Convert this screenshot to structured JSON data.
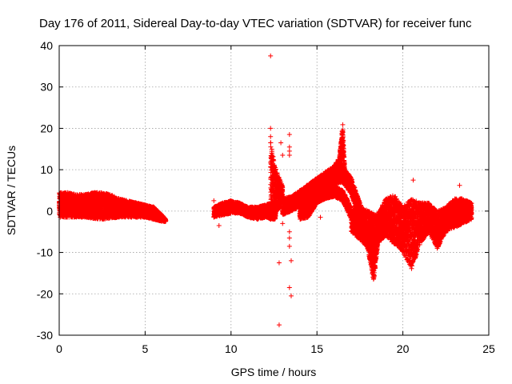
{
  "chart_data": {
    "type": "scatter",
    "title": "Day 176 of 2011, Sidereal Day-to-day VTEC variation (SDTVAR) for receiver func",
    "xlabel": "GPS time / hours",
    "ylabel": "SDTVAR / TECUs",
    "xlim": [
      0,
      25
    ],
    "ylim": [
      -30,
      40
    ],
    "xticks": [
      0,
      5,
      10,
      15,
      20,
      25
    ],
    "yticks": [
      -30,
      -20,
      -10,
      0,
      10,
      20,
      30,
      40
    ],
    "grid": true,
    "marker": "+",
    "color": "#ff0000",
    "series": [
      {
        "name": "SDTVAR",
        "bands": [
          {
            "x": [
              0.0,
              0.5,
              1.0,
              1.5,
              2.0,
              2.5,
              3.0,
              3.5,
              4.0,
              4.5,
              5.0,
              5.5,
              6.0,
              6.2
            ],
            "ymin": [
              -1.5,
              -1.5,
              -1.5,
              -1.5,
              -1.8,
              -2.0,
              -1.8,
              -1.5,
              -1.5,
              -1.5,
              -1.5,
              -2.0,
              -2.5,
              -2.5
            ],
            "ymax": [
              4.5,
              4.5,
              4.0,
              4.0,
              4.5,
              4.5,
              4.0,
              3.0,
              2.5,
              2.0,
              1.5,
              1.0,
              -1.0,
              -2.0
            ]
          },
          {
            "x": [
              9.0,
              9.5,
              10.0,
              10.5,
              11.0,
              11.5,
              12.0,
              12.3,
              12.6
            ],
            "ymin": [
              -1.5,
              -1.0,
              -0.5,
              -0.5,
              -1.5,
              -2.0,
              -1.5,
              -2.0,
              -2.0
            ],
            "ymax": [
              1.0,
              2.0,
              2.5,
              2.0,
              1.0,
              1.0,
              1.5,
              2.0,
              2.0
            ]
          },
          {
            "x": [
              12.3,
              12.5,
              12.7,
              12.9,
              13.0
            ],
            "ymin": [
              -2.0,
              -1.0,
              0.0,
              1.0,
              2.0
            ],
            "ymax": [
              17.0,
              12.0,
              9.0,
              7.0,
              6.0
            ]
          },
          {
            "x": [
              13.0,
              13.5,
              14.0,
              14.5,
              15.0,
              15.5,
              16.0,
              16.3
            ],
            "ymin": [
              -1.0,
              0.0,
              1.0,
              2.0,
              3.0,
              4.0,
              6.0,
              8.0
            ],
            "ymax": [
              3.0,
              3.5,
              4.5,
              6.0,
              8.0,
              9.5,
              11.0,
              13.0
            ]
          },
          {
            "x": [
              16.3,
              16.4,
              16.5,
              16.6
            ],
            "ymin": [
              8.0,
              11.0,
              14.0,
              10.0
            ],
            "ymax": [
              13.0,
              17.0,
              21.0,
              12.0
            ]
          },
          {
            "x": [
              13.5,
              14.0,
              14.5,
              15.0,
              15.5,
              16.0,
              16.5,
              17.0,
              17.5,
              18.0,
              18.3,
              18.6,
              19.0
            ],
            "ymin": [
              0.5,
              1.5,
              2.5,
              4.0,
              5.5,
              6.5,
              7.0,
              4.0,
              -2.0,
              -10.0,
              -17.0,
              -6.0,
              -5.0
            ],
            "ymax": [
              3.5,
              5.0,
              6.5,
              8.0,
              9.0,
              10.0,
              11.0,
              8.0,
              2.0,
              -4.0,
              -10.0,
              0.0,
              0.0
            ]
          },
          {
            "x": [
              14.0,
              14.5,
              15.0,
              15.5,
              16.0,
              16.5,
              17.0
            ],
            "ymin": [
              -2.0,
              -1.5,
              2.0,
              3.0,
              3.5,
              2.5,
              -2.0
            ],
            "ymax": [
              1.0,
              2.0,
              4.0,
              5.5,
              6.0,
              5.0,
              1.0
            ]
          },
          {
            "x": [
              17.0,
              17.5,
              18.0,
              18.5,
              19.0,
              19.5,
              20.0,
              20.5,
              21.0,
              21.5,
              22.0,
              22.5,
              23.0,
              23.5,
              24.0
            ],
            "ymin": [
              -5.0,
              -7.0,
              -9.0,
              -8.0,
              -6.0,
              -8.0,
              -10.0,
              -14.0,
              -8.0,
              -5.0,
              -9.0,
              -5.0,
              -4.0,
              -3.0,
              -2.0
            ],
            "ymax": [
              0.0,
              1.0,
              0.0,
              -1.0,
              3.0,
              4.0,
              1.0,
              3.0,
              2.0,
              2.0,
              0.0,
              1.0,
              3.0,
              3.0,
              2.0
            ]
          }
        ],
        "outliers": [
          {
            "x": 12.3,
            "y": 37.5
          },
          {
            "x": 12.3,
            "y": 20
          },
          {
            "x": 12.3,
            "y": 18
          },
          {
            "x": 12.3,
            "y": 16.5
          },
          {
            "x": 12.9,
            "y": 16.5
          },
          {
            "x": 13.0,
            "y": 13.5
          },
          {
            "x": 13.4,
            "y": 18.5
          },
          {
            "x": 13.4,
            "y": 15.5
          },
          {
            "x": 13.4,
            "y": 14.5
          },
          {
            "x": 13.4,
            "y": 13.5
          },
          {
            "x": 12.8,
            "y": -12.5
          },
          {
            "x": 13.0,
            "y": -3
          },
          {
            "x": 13.4,
            "y": -5
          },
          {
            "x": 13.4,
            "y": -6.5
          },
          {
            "x": 13.4,
            "y": -8.5
          },
          {
            "x": 13.5,
            "y": -12
          },
          {
            "x": 13.4,
            "y": -18.5
          },
          {
            "x": 13.5,
            "y": -20.5
          },
          {
            "x": 12.8,
            "y": -27.5
          },
          {
            "x": 9.3,
            "y": -3.5
          },
          {
            "x": 9.0,
            "y": 2.5
          },
          {
            "x": 15.2,
            "y": -1.5
          },
          {
            "x": 20.6,
            "y": 7.5
          },
          {
            "x": 23.3,
            "y": 6.2
          },
          {
            "x": 21.2,
            "y": -6
          },
          {
            "x": 22.0,
            "y": -9
          }
        ]
      }
    ]
  }
}
